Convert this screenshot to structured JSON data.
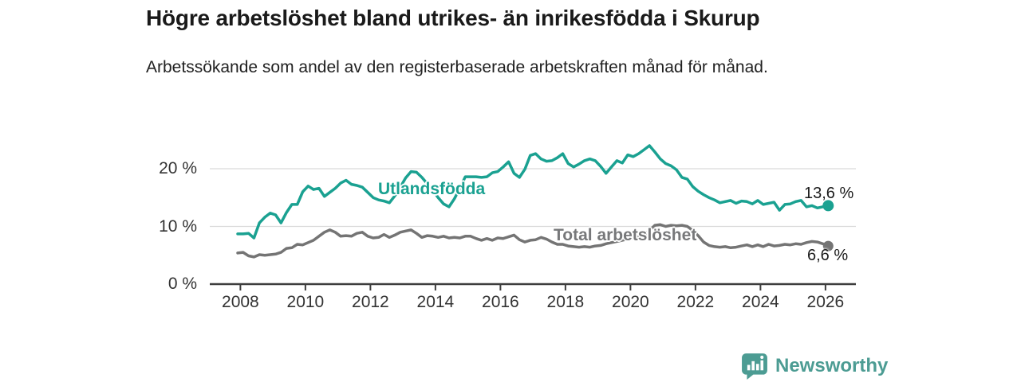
{
  "header": {
    "title": "Högre arbetslöshet bland utrikes- än inrikesfödda i Skurup",
    "subtitle": "Arbetssökande som andel av den registerbaserade arbetskraften månad för månad."
  },
  "chart_data": {
    "type": "line",
    "title": "Högre arbetslöshet bland utrikes- än inrikesfödda i Skurup",
    "subtitle": "Arbetssökande som andel av den registerbaserade arbetskraften månad för månad.",
    "unit": "%",
    "x_start": 2007.917,
    "x_step": 0.166667,
    "xlim": [
      2007.9,
      2026.9
    ],
    "ylim": [
      0,
      27
    ],
    "grid": "horizontal-only",
    "legend_position": "inline-labels",
    "y_ticks": [
      {
        "value": 0,
        "label": "0 %"
      },
      {
        "value": 10,
        "label": "10 %"
      },
      {
        "value": 20,
        "label": "20 %"
      }
    ],
    "x_ticks": [
      {
        "value": 2008,
        "label": "2008"
      },
      {
        "value": 2010,
        "label": "2010"
      },
      {
        "value": 2012,
        "label": "2012"
      },
      {
        "value": 2014,
        "label": "2014"
      },
      {
        "value": 2016,
        "label": "2016"
      },
      {
        "value": 2018,
        "label": "2018"
      },
      {
        "value": 2020,
        "label": "2020"
      },
      {
        "value": 2022,
        "label": "2022"
      },
      {
        "value": 2024,
        "label": "2024"
      },
      {
        "value": 2026,
        "label": "2026"
      }
    ],
    "series": [
      {
        "name": "Utlandsfödda",
        "color": "#1aa191",
        "end_label": "13,6 %",
        "end_value": 13.6,
        "values": [
          8.7,
          8.7,
          8.8,
          8.0,
          10.6,
          11.6,
          12.3,
          12.0,
          10.6,
          12.4,
          13.8,
          13.8,
          16.0,
          17.0,
          16.4,
          16.6,
          15.2,
          15.9,
          16.6,
          17.5,
          18.0,
          17.3,
          17.1,
          16.8,
          15.9,
          15.0,
          14.6,
          14.4,
          14.1,
          15.3,
          16.8,
          18.4,
          19.5,
          19.4,
          18.5,
          17.4,
          16.3,
          15.0,
          13.9,
          13.4,
          14.8,
          16.6,
          18.6,
          18.6,
          18.6,
          18.5,
          18.6,
          19.3,
          19.5,
          20.3,
          21.2,
          19.2,
          18.5,
          19.9,
          22.3,
          22.6,
          21.7,
          21.3,
          21.4,
          21.9,
          22.6,
          20.9,
          20.3,
          20.8,
          21.4,
          21.7,
          21.4,
          20.4,
          19.2,
          20.3,
          21.4,
          21.0,
          22.4,
          22.1,
          22.6,
          23.3,
          24.0,
          22.9,
          21.7,
          20.9,
          20.5,
          19.8,
          18.5,
          18.2,
          16.9,
          16.1,
          15.5,
          15.0,
          14.6,
          14.1,
          14.3,
          14.5,
          14.0,
          14.4,
          14.3,
          13.9,
          14.5,
          13.8,
          14.0,
          14.2,
          12.8,
          13.8,
          13.9,
          14.3,
          14.5,
          13.4,
          13.6,
          13.2,
          13.4,
          13.6
        ]
      },
      {
        "name": "Total arbetslöshet",
        "color": "#747474",
        "end_label": "6,6 %",
        "end_value": 6.6,
        "values": [
          5.4,
          5.5,
          4.9,
          4.7,
          5.1,
          5.0,
          5.1,
          5.2,
          5.5,
          6.2,
          6.3,
          6.9,
          6.8,
          7.2,
          7.6,
          8.3,
          9.0,
          9.4,
          9.0,
          8.3,
          8.4,
          8.3,
          8.8,
          9.0,
          8.3,
          8.0,
          8.1,
          8.6,
          8.1,
          8.5,
          9.0,
          9.2,
          9.4,
          8.8,
          8.1,
          8.4,
          8.3,
          8.1,
          8.3,
          8.0,
          8.1,
          8.0,
          8.3,
          8.3,
          7.9,
          7.6,
          7.9,
          7.6,
          8.0,
          7.9,
          8.2,
          8.5,
          7.7,
          7.3,
          7.6,
          7.7,
          8.1,
          7.8,
          7.3,
          6.9,
          6.9,
          6.6,
          6.5,
          6.4,
          6.5,
          6.4,
          6.6,
          6.7,
          7.0,
          7.2,
          7.4,
          7.6,
          7.8,
          8.0,
          8.2,
          8.4,
          9.3,
          10.2,
          10.3,
          10.0,
          10.2,
          10.1,
          10.2,
          10.0,
          9.3,
          8.4,
          7.3,
          6.7,
          6.5,
          6.4,
          6.5,
          6.3,
          6.4,
          6.6,
          6.8,
          6.5,
          6.8,
          6.5,
          6.9,
          6.6,
          6.7,
          6.9,
          6.8,
          7.0,
          6.9,
          7.2,
          7.4,
          7.3,
          7.0,
          6.6
        ]
      }
    ]
  },
  "colors": {
    "accent_teal": "#1aa191",
    "line_gray": "#747474",
    "grid": "#dadada",
    "axis": "#3d3d3d",
    "logo_teal": "#4c9c93"
  },
  "footer": {
    "brand": "Newsworthy"
  }
}
